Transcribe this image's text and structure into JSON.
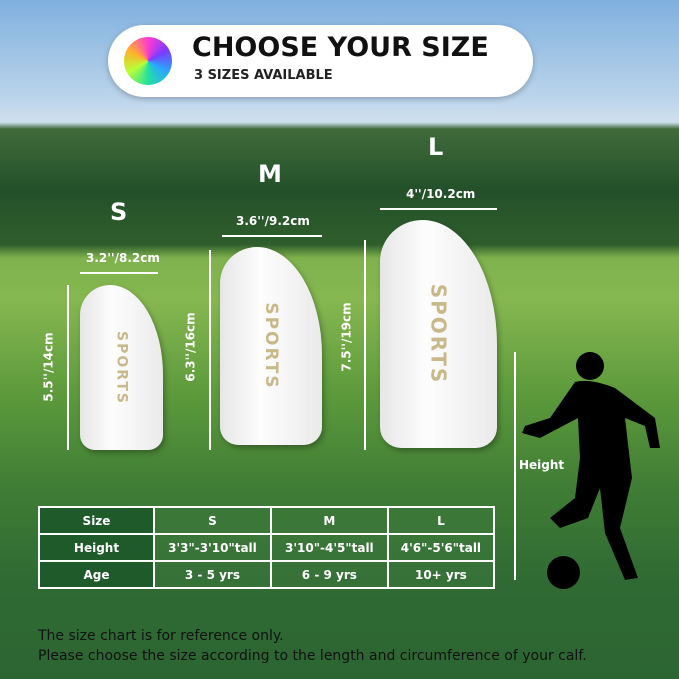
{
  "header": {
    "title": "CHOOSE YOUR SIZE",
    "subtitle": "3 SIZES AVAILABLE",
    "icon": "soccer-ball-icon"
  },
  "guards": [
    {
      "size": "S",
      "width": "3.2''/8.2cm",
      "length": "5.5''/14cm",
      "brand": "SPORTS"
    },
    {
      "size": "M",
      "width": "3.6''/9.2cm",
      "length": "6.3''/16cm",
      "brand": "SPORTS"
    },
    {
      "size": "L",
      "width": "4''/10.2cm",
      "length": "7.5''/19cm",
      "brand": "SPORTS"
    }
  ],
  "height_label": "Height",
  "table": {
    "rows": [
      [
        "Size",
        "S",
        "M",
        "L"
      ],
      [
        "Height",
        "3'3\"-3'10\"tall",
        "3'10\"-4'5\"tall",
        "4'6\"-5'6\"tall"
      ],
      [
        "Age",
        "3 - 5 yrs",
        "6 - 9 yrs",
        "10+ yrs"
      ]
    ]
  },
  "footer": {
    "line1": "The size chart is for reference only.",
    "line2": "Please choose the size according to the length and circumference of your calf."
  }
}
